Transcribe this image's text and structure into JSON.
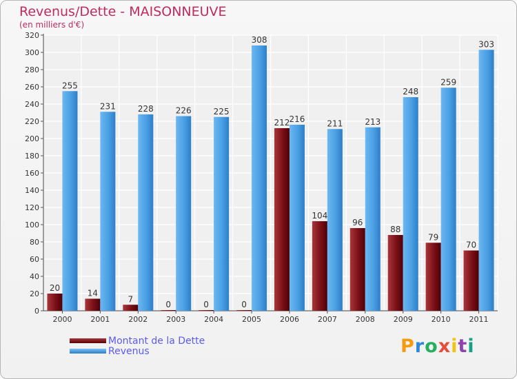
{
  "chart_data": {
    "type": "bar",
    "title": "Revenus/Dette - MAISONNEUVE",
    "subtitle": "(en milliers d'€)",
    "categories": [
      "2000",
      "2001",
      "2002",
      "2003",
      "2004",
      "2005",
      "2006",
      "2007",
      "2008",
      "2009",
      "2010",
      "2011"
    ],
    "series": [
      {
        "name": "Montant de la Dette",
        "color": "#7a1016",
        "values": [
          20,
          14,
          7,
          0,
          0,
          0,
          212,
          104,
          96,
          88,
          79,
          70
        ]
      },
      {
        "name": "Revenus",
        "color": "#4a9fe3",
        "values": [
          255,
          231,
          228,
          226,
          225,
          308,
          216,
          211,
          213,
          248,
          259,
          303
        ]
      }
    ],
    "ylim": [
      0,
      320
    ],
    "yticks": [
      0,
      20,
      40,
      60,
      80,
      100,
      120,
      140,
      160,
      180,
      200,
      220,
      240,
      260,
      280,
      300,
      320
    ],
    "grid": true,
    "legend_position": "bottom-left"
  },
  "brand": {
    "letters": [
      "P",
      "r",
      "o",
      "x",
      "i",
      "t",
      "i"
    ],
    "colors": [
      "#f39c12",
      "#2e86de",
      "#27ae60",
      "#e74c3c",
      "#f1c40f",
      "#8e44ad",
      "#16a085"
    ]
  }
}
